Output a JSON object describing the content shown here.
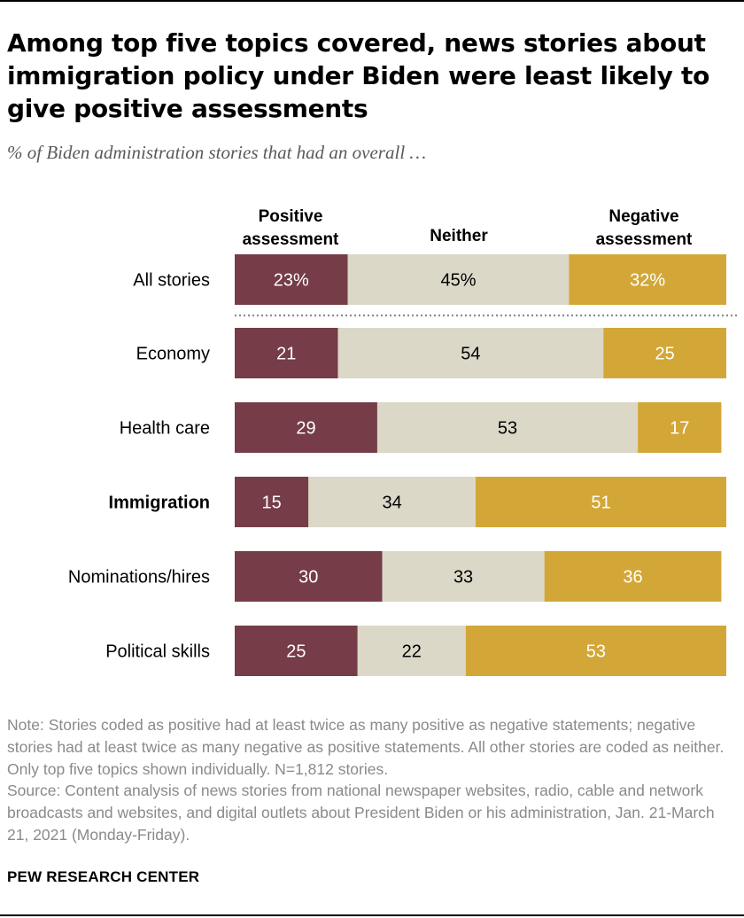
{
  "header": {
    "title": "Among top five topics covered, news stories about immigration policy under Biden were least likely to give positive assessments",
    "subtitle": "% of Biden administration stories that had an overall …"
  },
  "colors": {
    "positive": "#763c47",
    "neither": "#dbd8c8",
    "negative": "#d3a737",
    "divider": "#8c8c8c"
  },
  "chart_data": {
    "type": "bar",
    "orientation": "horizontal",
    "stacked": true,
    "xlim": [
      0,
      100
    ],
    "legend_placement": "top",
    "categories": [
      "All stories",
      "Economy",
      "Health care",
      "Immigration",
      "Nominations/hires",
      "Political skills"
    ],
    "highlighted_category": "Immigration",
    "divider_after": "All stories",
    "series": [
      {
        "name": "Positive assessment",
        "values": [
          23,
          21,
          29,
          15,
          30,
          25
        ],
        "labels": [
          "23%",
          "21",
          "29",
          "15",
          "30",
          "25"
        ]
      },
      {
        "name": "Neither",
        "values": [
          45,
          54,
          53,
          34,
          33,
          22
        ],
        "labels": [
          "45%",
          "54",
          "53",
          "34",
          "33",
          "22"
        ]
      },
      {
        "name": "Negative assessment",
        "values": [
          32,
          25,
          17,
          51,
          36,
          53
        ],
        "labels": [
          "32%",
          "25",
          "17",
          "51",
          "36",
          "53"
        ]
      }
    ]
  },
  "notes": {
    "note": "Note: Stories coded as positive had at least twice as many positive as negative statements; negative stories had at least twice as many negative as positive statements. All other stories are coded as neither. Only top five topics shown individually. N=1,812 stories.",
    "source": "Source: Content analysis of news stories from national newspaper websites, radio, cable and network broadcasts and websites, and digital outlets about President Biden or his administration, Jan. 21-March 21, 2021 (Monday-Friday)."
  },
  "footer": {
    "brand": "PEW RESEARCH CENTER"
  }
}
